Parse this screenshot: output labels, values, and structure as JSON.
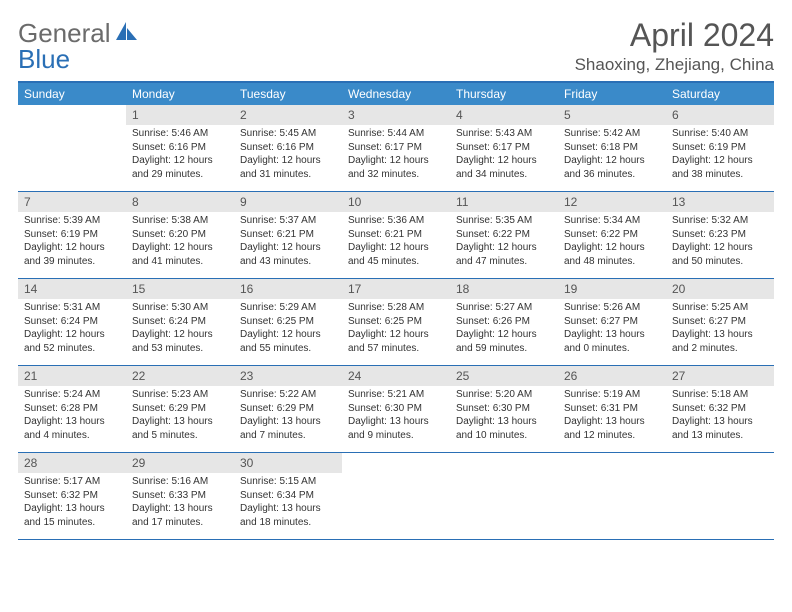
{
  "brand": {
    "part1": "General",
    "part2": "Blue"
  },
  "title": "April 2024",
  "location": "Shaoxing, Zhejiang, China",
  "colors": {
    "header_bar": "#3a8ac9",
    "border": "#2a6fb5",
    "day_number_bg": "#e6e6e6",
    "text": "#333333",
    "brand_gray": "#6b6b6b",
    "brand_blue": "#2a6fb5"
  },
  "weekdays": [
    "Sunday",
    "Monday",
    "Tuesday",
    "Wednesday",
    "Thursday",
    "Friday",
    "Saturday"
  ],
  "weeks": [
    [
      {
        "n": "",
        "lines": []
      },
      {
        "n": "1",
        "lines": [
          "Sunrise: 5:46 AM",
          "Sunset: 6:16 PM",
          "Daylight: 12 hours",
          "and 29 minutes."
        ]
      },
      {
        "n": "2",
        "lines": [
          "Sunrise: 5:45 AM",
          "Sunset: 6:16 PM",
          "Daylight: 12 hours",
          "and 31 minutes."
        ]
      },
      {
        "n": "3",
        "lines": [
          "Sunrise: 5:44 AM",
          "Sunset: 6:17 PM",
          "Daylight: 12 hours",
          "and 32 minutes."
        ]
      },
      {
        "n": "4",
        "lines": [
          "Sunrise: 5:43 AM",
          "Sunset: 6:17 PM",
          "Daylight: 12 hours",
          "and 34 minutes."
        ]
      },
      {
        "n": "5",
        "lines": [
          "Sunrise: 5:42 AM",
          "Sunset: 6:18 PM",
          "Daylight: 12 hours",
          "and 36 minutes."
        ]
      },
      {
        "n": "6",
        "lines": [
          "Sunrise: 5:40 AM",
          "Sunset: 6:19 PM",
          "Daylight: 12 hours",
          "and 38 minutes."
        ]
      }
    ],
    [
      {
        "n": "7",
        "lines": [
          "Sunrise: 5:39 AM",
          "Sunset: 6:19 PM",
          "Daylight: 12 hours",
          "and 39 minutes."
        ]
      },
      {
        "n": "8",
        "lines": [
          "Sunrise: 5:38 AM",
          "Sunset: 6:20 PM",
          "Daylight: 12 hours",
          "and 41 minutes."
        ]
      },
      {
        "n": "9",
        "lines": [
          "Sunrise: 5:37 AM",
          "Sunset: 6:21 PM",
          "Daylight: 12 hours",
          "and 43 minutes."
        ]
      },
      {
        "n": "10",
        "lines": [
          "Sunrise: 5:36 AM",
          "Sunset: 6:21 PM",
          "Daylight: 12 hours",
          "and 45 minutes."
        ]
      },
      {
        "n": "11",
        "lines": [
          "Sunrise: 5:35 AM",
          "Sunset: 6:22 PM",
          "Daylight: 12 hours",
          "and 47 minutes."
        ]
      },
      {
        "n": "12",
        "lines": [
          "Sunrise: 5:34 AM",
          "Sunset: 6:22 PM",
          "Daylight: 12 hours",
          "and 48 minutes."
        ]
      },
      {
        "n": "13",
        "lines": [
          "Sunrise: 5:32 AM",
          "Sunset: 6:23 PM",
          "Daylight: 12 hours",
          "and 50 minutes."
        ]
      }
    ],
    [
      {
        "n": "14",
        "lines": [
          "Sunrise: 5:31 AM",
          "Sunset: 6:24 PM",
          "Daylight: 12 hours",
          "and 52 minutes."
        ]
      },
      {
        "n": "15",
        "lines": [
          "Sunrise: 5:30 AM",
          "Sunset: 6:24 PM",
          "Daylight: 12 hours",
          "and 53 minutes."
        ]
      },
      {
        "n": "16",
        "lines": [
          "Sunrise: 5:29 AM",
          "Sunset: 6:25 PM",
          "Daylight: 12 hours",
          "and 55 minutes."
        ]
      },
      {
        "n": "17",
        "lines": [
          "Sunrise: 5:28 AM",
          "Sunset: 6:25 PM",
          "Daylight: 12 hours",
          "and 57 minutes."
        ]
      },
      {
        "n": "18",
        "lines": [
          "Sunrise: 5:27 AM",
          "Sunset: 6:26 PM",
          "Daylight: 12 hours",
          "and 59 minutes."
        ]
      },
      {
        "n": "19",
        "lines": [
          "Sunrise: 5:26 AM",
          "Sunset: 6:27 PM",
          "Daylight: 13 hours",
          "and 0 minutes."
        ]
      },
      {
        "n": "20",
        "lines": [
          "Sunrise: 5:25 AM",
          "Sunset: 6:27 PM",
          "Daylight: 13 hours",
          "and 2 minutes."
        ]
      }
    ],
    [
      {
        "n": "21",
        "lines": [
          "Sunrise: 5:24 AM",
          "Sunset: 6:28 PM",
          "Daylight: 13 hours",
          "and 4 minutes."
        ]
      },
      {
        "n": "22",
        "lines": [
          "Sunrise: 5:23 AM",
          "Sunset: 6:29 PM",
          "Daylight: 13 hours",
          "and 5 minutes."
        ]
      },
      {
        "n": "23",
        "lines": [
          "Sunrise: 5:22 AM",
          "Sunset: 6:29 PM",
          "Daylight: 13 hours",
          "and 7 minutes."
        ]
      },
      {
        "n": "24",
        "lines": [
          "Sunrise: 5:21 AM",
          "Sunset: 6:30 PM",
          "Daylight: 13 hours",
          "and 9 minutes."
        ]
      },
      {
        "n": "25",
        "lines": [
          "Sunrise: 5:20 AM",
          "Sunset: 6:30 PM",
          "Daylight: 13 hours",
          "and 10 minutes."
        ]
      },
      {
        "n": "26",
        "lines": [
          "Sunrise: 5:19 AM",
          "Sunset: 6:31 PM",
          "Daylight: 13 hours",
          "and 12 minutes."
        ]
      },
      {
        "n": "27",
        "lines": [
          "Sunrise: 5:18 AM",
          "Sunset: 6:32 PM",
          "Daylight: 13 hours",
          "and 13 minutes."
        ]
      }
    ],
    [
      {
        "n": "28",
        "lines": [
          "Sunrise: 5:17 AM",
          "Sunset: 6:32 PM",
          "Daylight: 13 hours",
          "and 15 minutes."
        ]
      },
      {
        "n": "29",
        "lines": [
          "Sunrise: 5:16 AM",
          "Sunset: 6:33 PM",
          "Daylight: 13 hours",
          "and 17 minutes."
        ]
      },
      {
        "n": "30",
        "lines": [
          "Sunrise: 5:15 AM",
          "Sunset: 6:34 PM",
          "Daylight: 13 hours",
          "and 18 minutes."
        ]
      },
      {
        "n": "",
        "lines": []
      },
      {
        "n": "",
        "lines": []
      },
      {
        "n": "",
        "lines": []
      },
      {
        "n": "",
        "lines": []
      }
    ]
  ]
}
